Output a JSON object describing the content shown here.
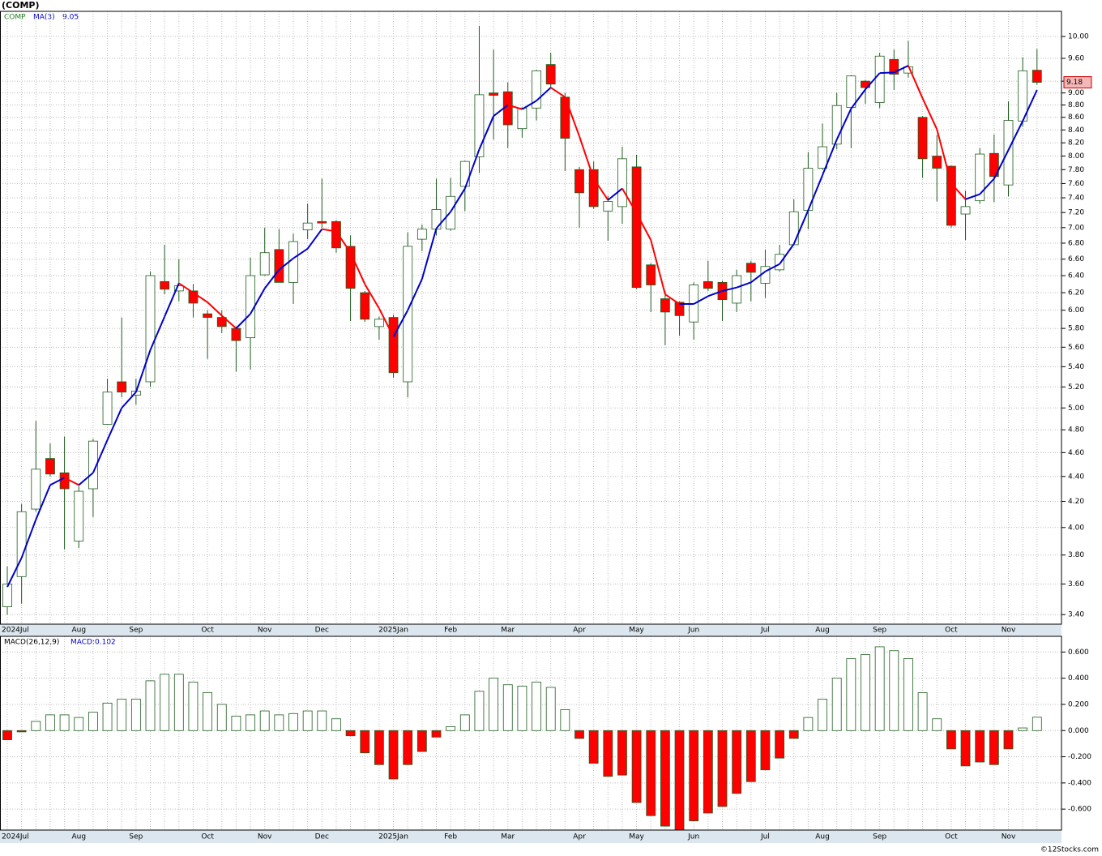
{
  "chart_data": [
    {
      "type": "candlestick",
      "title": "(COMP)",
      "symbol": "COMP",
      "categories": [
        "2024Jul",
        null,
        null,
        null,
        null,
        "Aug",
        null,
        null,
        null,
        "Sep",
        null,
        null,
        null,
        null,
        "Oct",
        null,
        null,
        null,
        "Nov",
        null,
        null,
        null,
        "Dec",
        null,
        null,
        null,
        null,
        "2025Jan",
        null,
        null,
        null,
        "Feb",
        null,
        null,
        null,
        "Mar",
        null,
        null,
        null,
        null,
        "Apr",
        null,
        null,
        null,
        "May",
        null,
        null,
        null,
        "Jun",
        null,
        null,
        null,
        null,
        "Jul",
        null,
        null,
        null,
        "Aug",
        null,
        null,
        null,
        "Sep",
        null,
        null,
        null,
        null,
        "Oct",
        null,
        null,
        null,
        "Nov",
        null,
        null
      ],
      "open": [
        3.45,
        3.65,
        4.14,
        4.55,
        4.43,
        3.9,
        4.3,
        4.85,
        5.25,
        5.12,
        5.25,
        6.33,
        6.22,
        6.22,
        5.96,
        5.92,
        5.8,
        5.7,
        6.41,
        6.72,
        6.32,
        6.97,
        7.08,
        7.08,
        6.76,
        6.2,
        5.82,
        5.92,
        5.25,
        6.85,
        6.98,
        6.98,
        7.56,
        7.99,
        9.0,
        9.02,
        8.42,
        8.75,
        9.49,
        8.93,
        7.8,
        7.8,
        7.22,
        7.28,
        7.84,
        6.53,
        6.13,
        6.09,
        5.87,
        6.33,
        6.32,
        6.08,
        6.55,
        6.31,
        6.47,
        6.78,
        7.23,
        7.82,
        8.18,
        8.76,
        9.2,
        8.84,
        9.58,
        9.34,
        8.6,
        8.0,
        7.85,
        7.18,
        7.36,
        8.04,
        7.58,
        8.54,
        9.39
      ],
      "high": [
        3.72,
        4.18,
        4.88,
        4.68,
        4.74,
        4.32,
        4.72,
        5.28,
        5.92,
        5.28,
        6.45,
        6.78,
        6.6,
        6.3,
        6.0,
        6.0,
        5.82,
        6.62,
        7.0,
        6.98,
        6.92,
        7.32,
        7.67,
        7.1,
        6.9,
        6.22,
        5.93,
        5.95,
        6.94,
        7.04,
        7.67,
        7.68,
        7.93,
        10.2,
        9.76,
        9.18,
        8.76,
        9.4,
        9.7,
        9.0,
        7.84,
        7.92,
        7.43,
        8.14,
        8.02,
        6.55,
        6.22,
        6.1,
        6.32,
        6.58,
        6.34,
        6.47,
        6.58,
        6.72,
        6.78,
        7.38,
        8.06,
        8.5,
        9.0,
        9.3,
        9.22,
        9.7,
        9.76,
        9.92,
        8.62,
        8.32,
        7.86,
        7.5,
        8.12,
        8.33,
        8.86,
        9.62,
        9.77
      ],
      "low": [
        3.4,
        3.47,
        4.12,
        4.4,
        3.84,
        3.85,
        4.08,
        4.85,
        5.1,
        5.03,
        5.2,
        6.18,
        6.1,
        5.92,
        5.48,
        5.75,
        5.35,
        5.37,
        6.4,
        6.32,
        6.07,
        6.85,
        7.0,
        6.68,
        5.88,
        5.87,
        5.68,
        5.29,
        5.1,
        6.7,
        6.9,
        6.96,
        7.22,
        7.75,
        8.25,
        8.12,
        8.28,
        8.55,
        9.08,
        7.78,
        7.0,
        7.25,
        6.83,
        7.05,
        6.24,
        5.98,
        5.62,
        5.72,
        5.68,
        6.22,
        5.88,
        5.98,
        6.1,
        6.14,
        6.45,
        6.78,
        6.98,
        7.8,
        8.1,
        8.12,
        8.82,
        8.75,
        9.05,
        9.26,
        7.68,
        7.35,
        7.0,
        6.84,
        7.32,
        7.34,
        7.42,
        8.45,
        9.14
      ],
      "close": [
        3.6,
        4.12,
        4.46,
        4.42,
        4.3,
        4.28,
        4.7,
        5.15,
        5.15,
        5.16,
        6.4,
        6.24,
        6.28,
        6.08,
        5.92,
        5.82,
        5.67,
        6.4,
        6.68,
        6.32,
        6.82,
        7.06,
        7.06,
        6.74,
        6.25,
        5.9,
        5.9,
        5.34,
        6.76,
        6.98,
        7.24,
        7.42,
        7.92,
        8.97,
        8.96,
        8.48,
        8.75,
        9.38,
        9.15,
        8.27,
        7.47,
        7.28,
        7.35,
        7.96,
        6.26,
        6.29,
        5.98,
        5.94,
        6.29,
        6.25,
        6.12,
        6.4,
        6.44,
        6.51,
        6.66,
        7.21,
        7.82,
        8.14,
        8.79,
        9.29,
        9.09,
        9.64,
        9.32,
        9.45,
        7.96,
        7.82,
        7.03,
        7.28,
        8.03,
        7.7,
        8.55,
        9.38,
        9.18
      ],
      "up_color": "#ffffff",
      "down_color": "#ff0000",
      "outline_color": "#1e5e1e",
      "ma": {
        "name": "MA(3)",
        "last": 9.05,
        "up_color": "#0000cc",
        "down_color": "#ff0000",
        "values": [
          3.58,
          3.78,
          4.06,
          4.33,
          4.39,
          4.33,
          4.43,
          4.71,
          5.0,
          5.15,
          5.57,
          5.93,
          6.31,
          6.2,
          6.09,
          5.94,
          5.8,
          5.96,
          6.25,
          6.47,
          6.61,
          6.73,
          6.98,
          6.95,
          6.68,
          6.3,
          6.02,
          5.71,
          6.0,
          6.36,
          6.99,
          7.21,
          7.53,
          8.1,
          8.62,
          8.8,
          8.73,
          8.87,
          9.09,
          8.93,
          8.3,
          7.67,
          7.37,
          7.53,
          7.19,
          6.84,
          6.18,
          6.07,
          6.07,
          6.16,
          6.22,
          6.26,
          6.32,
          6.45,
          6.54,
          6.79,
          7.23,
          7.72,
          8.25,
          8.74,
          9.06,
          9.34,
          9.35,
          9.47,
          8.91,
          8.41,
          7.6,
          7.38,
          7.45,
          7.67,
          8.09,
          8.54,
          9.05
        ]
      },
      "log_scale": true,
      "grid": true,
      "ylim": [
        3.34,
        10.48
      ],
      "yticks": [
        {
          "value": 3.4,
          "label": "3.40"
        },
        {
          "value": 3.6,
          "label": "3.60"
        },
        {
          "value": 3.8,
          "label": "3.80"
        },
        {
          "value": 4.0,
          "label": "4.00"
        },
        {
          "value": 4.2,
          "label": "4.20"
        },
        {
          "value": 4.4,
          "label": "4.40"
        },
        {
          "value": 4.6,
          "label": "4.60"
        },
        {
          "value": 4.8,
          "label": "4.80"
        },
        {
          "value": 5.0,
          "label": "5.00"
        },
        {
          "value": 5.2,
          "label": "5.20"
        },
        {
          "value": 5.4,
          "label": "5.40"
        },
        {
          "value": 5.6,
          "label": "5.60"
        },
        {
          "value": 5.8,
          "label": "5.80"
        },
        {
          "value": 6.0,
          "label": "6.00"
        },
        {
          "value": 6.2,
          "label": "6.20"
        },
        {
          "value": 6.4,
          "label": "6.40"
        },
        {
          "value": 6.6,
          "label": "6.60"
        },
        {
          "value": 6.8,
          "label": "6.80"
        },
        {
          "value": 7.0,
          "label": "7.00"
        },
        {
          "value": 7.2,
          "label": "7.20"
        },
        {
          "value": 7.4,
          "label": "7.40"
        },
        {
          "value": 7.6,
          "label": "7.60"
        },
        {
          "value": 7.8,
          "label": "7.80"
        },
        {
          "value": 8.0,
          "label": "8.00"
        },
        {
          "value": 8.2,
          "label": "8.20"
        },
        {
          "value": 8.4,
          "label": "8.40"
        },
        {
          "value": 8.6,
          "label": "8.60"
        },
        {
          "value": 8.8,
          "label": "8.80"
        },
        {
          "value": 9.0,
          "label": "9.00"
        },
        {
          "value": 9.2,
          "label": "9.20"
        },
        {
          "value": 9.6,
          "label": "9.60"
        },
        {
          "value": 10.0,
          "label": "10.00"
        }
      ]
    },
    {
      "type": "bar",
      "indicator": "MACD(26,12,9)",
      "macd_label": "MACD:0.102",
      "categories": [
        "2024Jul",
        null,
        null,
        null,
        null,
        "Aug",
        null,
        null,
        null,
        "Sep",
        null,
        null,
        null,
        null,
        "Oct",
        null,
        null,
        null,
        "Nov",
        null,
        null,
        null,
        "Dec",
        null,
        null,
        null,
        null,
        "2025Jan",
        null,
        null,
        null,
        "Feb",
        null,
        null,
        null,
        "Mar",
        null,
        null,
        null,
        null,
        "Apr",
        null,
        null,
        null,
        "May",
        null,
        null,
        null,
        "Jun",
        null,
        null,
        null,
        null,
        "Jul",
        null,
        null,
        null,
        "Aug",
        null,
        null,
        null,
        "Sep",
        null,
        null,
        null,
        null,
        "Oct",
        null,
        null,
        null,
        "Nov",
        null,
        null
      ],
      "values": [
        -0.07,
        -0.01,
        0.07,
        0.12,
        0.12,
        0.1,
        0.14,
        0.21,
        0.24,
        0.24,
        0.38,
        0.43,
        0.43,
        0.37,
        0.29,
        0.2,
        0.11,
        0.12,
        0.15,
        0.12,
        0.13,
        0.15,
        0.15,
        0.09,
        -0.04,
        -0.17,
        -0.26,
        -0.37,
        -0.26,
        -0.16,
        -0.05,
        0.03,
        0.12,
        0.3,
        0.4,
        0.35,
        0.34,
        0.37,
        0.33,
        0.16,
        -0.06,
        -0.25,
        -0.35,
        -0.34,
        -0.55,
        -0.65,
        -0.73,
        -0.76,
        -0.69,
        -0.63,
        -0.58,
        -0.48,
        -0.39,
        -0.3,
        -0.21,
        -0.06,
        0.1,
        0.24,
        0.4,
        0.55,
        0.58,
        0.64,
        0.61,
        0.55,
        0.29,
        0.09,
        -0.14,
        -0.27,
        -0.24,
        -0.26,
        -0.14,
        0.02,
        0.102
      ],
      "positive_color": "#ffffff",
      "negative_color": "#ff0000",
      "outline_color": "#1e5e1e",
      "grid": true,
      "ylim": [
        -0.76,
        0.72
      ],
      "yticks": [
        {
          "value": -0.6,
          "label": "-0.600"
        },
        {
          "value": -0.4,
          "label": "-0.400"
        },
        {
          "value": -0.2,
          "label": "-0.200"
        },
        {
          "value": 0,
          "label": "0.000"
        },
        {
          "value": 0.2,
          "label": "0.200"
        },
        {
          "value": 0.4,
          "label": "0.400"
        },
        {
          "value": 0.6,
          "label": "0.600"
        }
      ]
    }
  ],
  "footer": "©12Stocks.com"
}
